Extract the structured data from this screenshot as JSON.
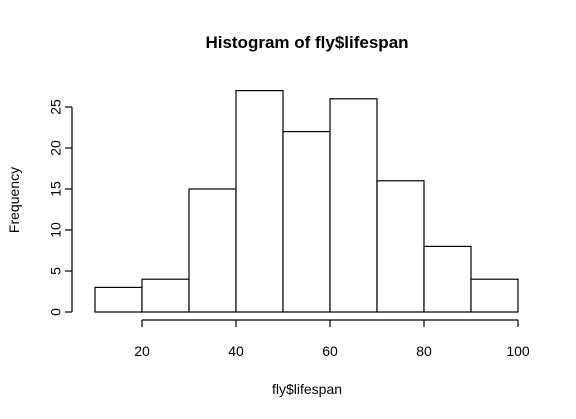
{
  "chart_data": {
    "type": "bar",
    "title": "Histogram of fly$lifespan",
    "xlabel": "fly$lifespan",
    "ylabel": "Frequency",
    "bins": [
      {
        "start": 10,
        "end": 20,
        "count": 3
      },
      {
        "start": 20,
        "end": 30,
        "count": 4
      },
      {
        "start": 30,
        "end": 40,
        "count": 15
      },
      {
        "start": 40,
        "end": 50,
        "count": 27
      },
      {
        "start": 50,
        "end": 60,
        "count": 22
      },
      {
        "start": 60,
        "end": 70,
        "count": 26
      },
      {
        "start": 70,
        "end": 80,
        "count": 16
      },
      {
        "start": 80,
        "end": 90,
        "count": 8
      },
      {
        "start": 90,
        "end": 100,
        "count": 4
      }
    ],
    "xticks": [
      20,
      40,
      60,
      80,
      100
    ],
    "yticks": [
      0,
      5,
      10,
      15,
      20,
      25
    ],
    "xlim": [
      10,
      100
    ],
    "ylim": [
      0,
      27
    ],
    "grid": false
  }
}
